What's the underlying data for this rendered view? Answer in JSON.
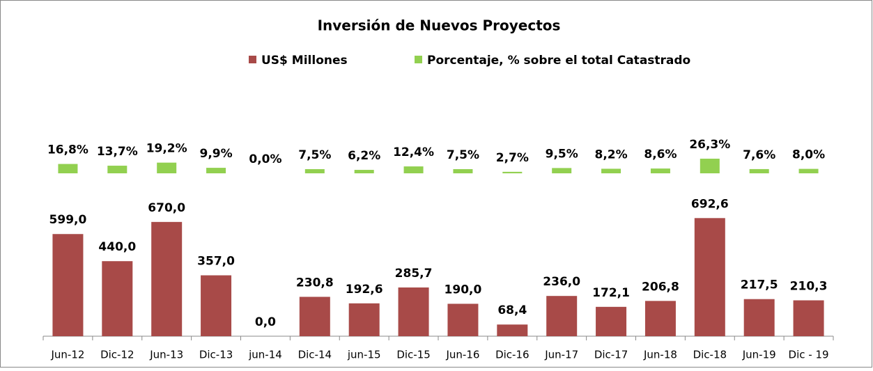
{
  "chart_data": {
    "type": "bar",
    "title": "Inversión de Nuevos Proyectos",
    "categories": [
      "Jun-12",
      "Dic-12",
      "Jun-13",
      "Dic-13",
      "jun-14",
      "Dic-14",
      "jun-15",
      "Dic-15",
      "Jun-16",
      "Dic-16",
      "Jun-17",
      "Dic-17",
      "Jun-18",
      "Dic-18",
      "Jun-19",
      "Dic - 19"
    ],
    "series": [
      {
        "name": "US$ Millones",
        "color": "#a84a48",
        "values": [
          599.0,
          440.0,
          670.0,
          357.0,
          0.0,
          230.8,
          192.6,
          285.7,
          190.0,
          68.4,
          236.0,
          172.1,
          206.8,
          692.6,
          217.5,
          210.3
        ],
        "value_labels": [
          "599,0",
          "440,0",
          "670,0",
          "357,0",
          "0,0",
          "230,8",
          "192,6",
          "285,7",
          "190,0",
          "68,4",
          "236,0",
          "172,1",
          "206,8",
          "692,6",
          "217,5",
          "210,3"
        ]
      },
      {
        "name": "Porcentaje, % sobre el total Catastrado",
        "color": "#92d050",
        "axis": "y2",
        "values": [
          16.8,
          13.7,
          19.2,
          9.9,
          0.0,
          7.5,
          6.2,
          12.4,
          7.5,
          2.7,
          9.5,
          8.2,
          8.6,
          26.3,
          7.6,
          8.0
        ],
        "value_labels": [
          "16,8%",
          "13,7%",
          "19,2%",
          "9,9%",
          "0,0%",
          "7,5%",
          "6,2%",
          "12,4%",
          "7,5%",
          "2,7%",
          "9,5%",
          "8,2%",
          "8,6%",
          "26,3%",
          "7,6%",
          "8,0%"
        ]
      }
    ],
    "ylim": [
      0,
      800
    ],
    "y2lim": [
      0,
      30
    ],
    "legend": "top"
  }
}
